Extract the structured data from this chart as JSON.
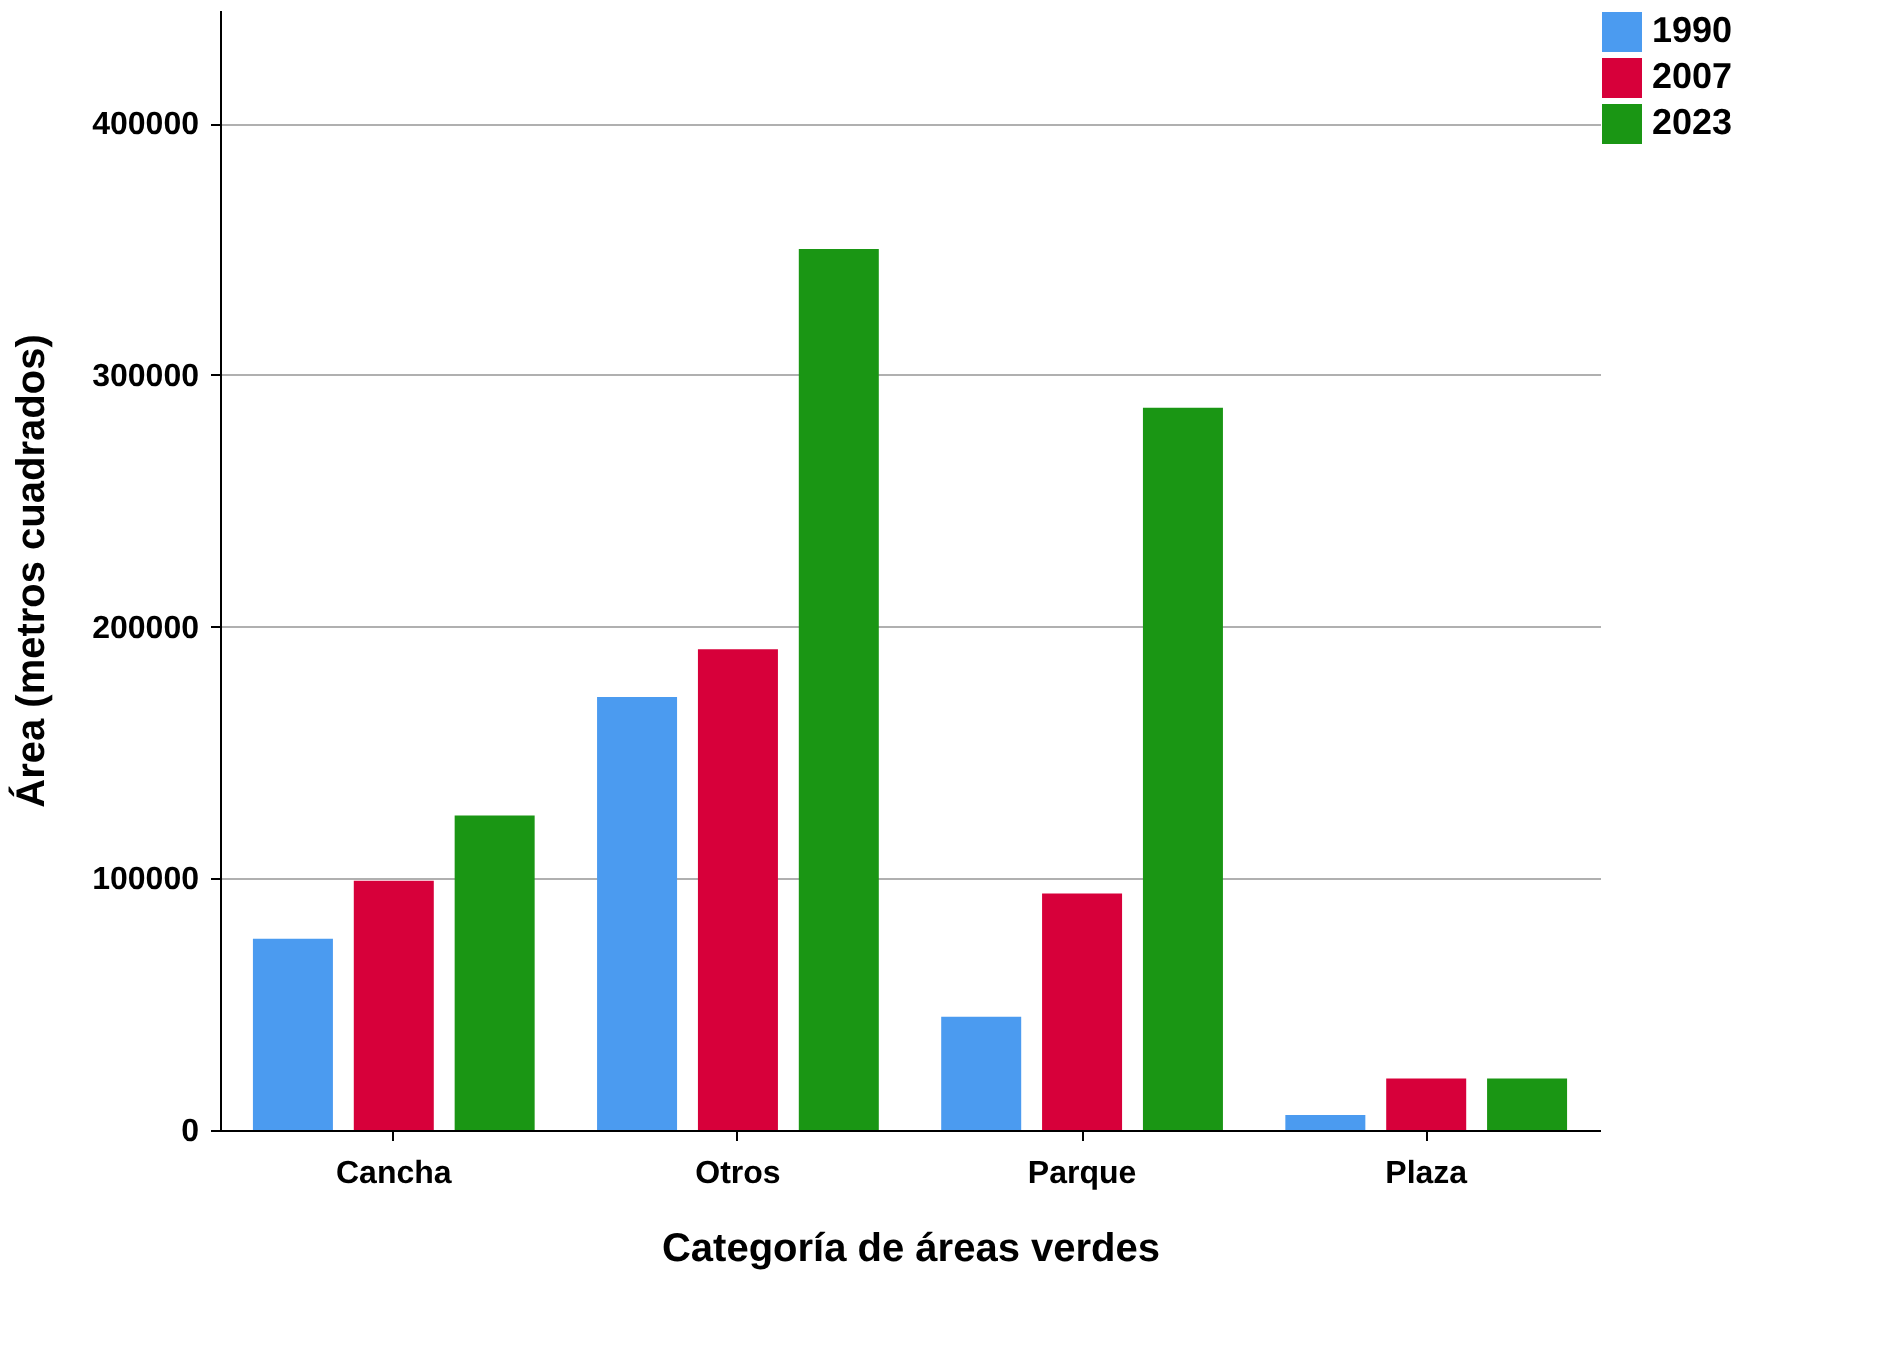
{
  "chart_data": {
    "type": "bar",
    "xlabel": "Categoría de áreas verdes",
    "ylabel": "Área (metros cuadrados)",
    "categories": [
      "Cancha",
      "Otros",
      "Parque",
      "Plaza"
    ],
    "series": [
      {
        "name": "1990",
        "color": "#4b9bf0",
        "values": [
          76000,
          172000,
          45000,
          6000
        ]
      },
      {
        "name": "2007",
        "color": "#d7003a",
        "values": [
          99000,
          191000,
          94000,
          20500
        ]
      },
      {
        "name": "2023",
        "color": "#1a9614",
        "values": [
          125000,
          350000,
          287000,
          20500
        ]
      }
    ],
    "ylim": [
      0,
      445000
    ],
    "yticks": [
      0,
      100000,
      200000,
      300000,
      400000
    ],
    "grid": "y",
    "legend": "top right"
  }
}
